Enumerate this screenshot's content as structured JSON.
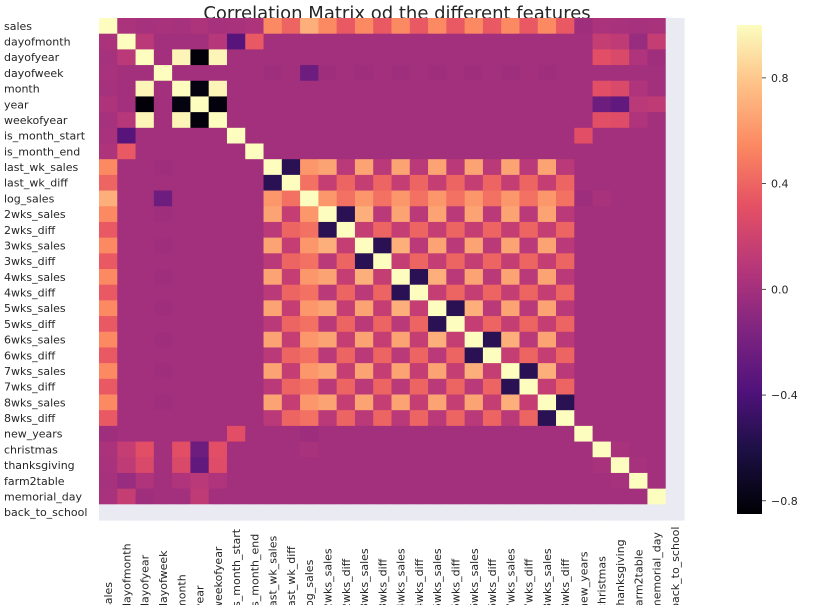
{
  "chart_data": {
    "type": "heatmap",
    "title": "Correlation Matrix od the different features",
    "labels": [
      "sales",
      "dayofmonth",
      "dayofyear",
      "dayofweek",
      "month",
      "year",
      "weekofyear",
      "is_month_start",
      "is_month_end",
      "last_wk_sales",
      "last_wk_diff",
      "log_sales",
      "2wks_sales",
      "2wks_diff",
      "3wks_sales",
      "3wks_diff",
      "4wks_sales",
      "4wks_diff",
      "5wks_sales",
      "5wks_diff",
      "6wks_sales",
      "6wks_diff",
      "7wks_sales",
      "7wks_diff",
      "8wks_sales",
      "8wks_diff",
      "new_years",
      "christmas",
      "thanksgiving",
      "farm2table",
      "memorial_day",
      "back_to_school"
    ],
    "colorbar": {
      "min": -0.85,
      "max": 1.0,
      "ticks": [
        -0.8,
        -0.4,
        0.0,
        0.4,
        0.8
      ],
      "tick_labels": [
        "−0.8",
        "−0.4",
        "0.0",
        "0.4",
        "0.8"
      ]
    },
    "colormap": "magma",
    "diagonal": 1.0,
    "missing_value_color": "#eaeaf2",
    "default_value": 0.0,
    "cells": [
      [
        0,
        1,
        0.03
      ],
      [
        0,
        2,
        0.01
      ],
      [
        0,
        3,
        0.02
      ],
      [
        0,
        4,
        0.01
      ],
      [
        0,
        5,
        0.04
      ],
      [
        0,
        6,
        0.01
      ],
      [
        0,
        7,
        0.02
      ],
      [
        0,
        8,
        0.04
      ],
      [
        0,
        9,
        0.55
      ],
      [
        0,
        10,
        0.4
      ],
      [
        0,
        11,
        0.7
      ],
      [
        0,
        12,
        0.55
      ],
      [
        0,
        13,
        0.35
      ],
      [
        0,
        14,
        0.55
      ],
      [
        0,
        15,
        0.35
      ],
      [
        0,
        16,
        0.55
      ],
      [
        0,
        17,
        0.35
      ],
      [
        0,
        18,
        0.55
      ],
      [
        0,
        19,
        0.35
      ],
      [
        0,
        20,
        0.55
      ],
      [
        0,
        21,
        0.35
      ],
      [
        0,
        22,
        0.55
      ],
      [
        0,
        23,
        0.35
      ],
      [
        0,
        24,
        0.55
      ],
      [
        0,
        25,
        0.35
      ],
      [
        0,
        26,
        -0.02
      ],
      [
        0,
        27,
        0.03
      ],
      [
        0,
        28,
        0.02
      ],
      [
        0,
        29,
        0.01
      ],
      [
        0,
        30,
        0.02
      ],
      [
        1,
        2,
        0.1
      ],
      [
        1,
        6,
        0.08
      ],
      [
        1,
        7,
        -0.35
      ],
      [
        1,
        8,
        0.35
      ],
      [
        1,
        27,
        0.15
      ],
      [
        1,
        28,
        0.12
      ],
      [
        1,
        29,
        -0.05
      ],
      [
        1,
        30,
        0.15
      ],
      [
        2,
        4,
        0.97
      ],
      [
        2,
        5,
        -0.83
      ],
      [
        2,
        6,
        0.97
      ],
      [
        2,
        27,
        0.3
      ],
      [
        2,
        28,
        0.25
      ],
      [
        2,
        29,
        0.05
      ],
      [
        2,
        30,
        -0.02
      ],
      [
        3,
        11,
        -0.25
      ],
      [
        3,
        9,
        -0.02
      ],
      [
        3,
        12,
        -0.02
      ],
      [
        3,
        14,
        -0.02
      ],
      [
        3,
        16,
        -0.02
      ],
      [
        3,
        18,
        -0.02
      ],
      [
        3,
        20,
        -0.02
      ],
      [
        3,
        22,
        -0.02
      ],
      [
        3,
        24,
        -0.02
      ],
      [
        4,
        5,
        -0.8
      ],
      [
        4,
        6,
        0.97
      ],
      [
        4,
        27,
        0.3
      ],
      [
        4,
        28,
        0.25
      ],
      [
        4,
        29,
        0.05
      ],
      [
        5,
        6,
        -0.82
      ],
      [
        5,
        27,
        -0.25
      ],
      [
        5,
        28,
        -0.3
      ],
      [
        5,
        29,
        0.1
      ],
      [
        5,
        30,
        0.12
      ],
      [
        6,
        27,
        0.3
      ],
      [
        6,
        28,
        0.28
      ],
      [
        6,
        29,
        0.05
      ],
      [
        7,
        26,
        0.3
      ],
      [
        9,
        10,
        -0.55
      ],
      [
        9,
        11,
        0.6
      ],
      [
        9,
        12,
        0.65
      ],
      [
        9,
        13,
        0.1
      ],
      [
        9,
        14,
        0.65
      ],
      [
        9,
        15,
        0.1
      ],
      [
        9,
        16,
        0.65
      ],
      [
        9,
        17,
        0.1
      ],
      [
        9,
        18,
        0.65
      ],
      [
        9,
        19,
        0.1
      ],
      [
        9,
        20,
        0.65
      ],
      [
        9,
        21,
        0.1
      ],
      [
        9,
        22,
        0.65
      ],
      [
        9,
        23,
        0.1
      ],
      [
        9,
        24,
        0.65
      ],
      [
        9,
        25,
        0.1
      ],
      [
        10,
        11,
        0.45
      ],
      [
        10,
        12,
        0.15
      ],
      [
        10,
        13,
        0.4
      ],
      [
        10,
        14,
        0.15
      ],
      [
        10,
        15,
        0.4
      ],
      [
        10,
        16,
        0.15
      ],
      [
        10,
        17,
        0.4
      ],
      [
        10,
        18,
        0.15
      ],
      [
        10,
        19,
        0.4
      ],
      [
        10,
        20,
        0.15
      ],
      [
        10,
        21,
        0.4
      ],
      [
        10,
        22,
        0.15
      ],
      [
        10,
        23,
        0.4
      ],
      [
        10,
        24,
        0.15
      ],
      [
        10,
        25,
        0.4
      ],
      [
        11,
        12,
        0.6
      ],
      [
        11,
        13,
        0.45
      ],
      [
        11,
        14,
        0.6
      ],
      [
        11,
        15,
        0.45
      ],
      [
        11,
        16,
        0.6
      ],
      [
        11,
        17,
        0.45
      ],
      [
        11,
        18,
        0.6
      ],
      [
        11,
        19,
        0.45
      ],
      [
        11,
        20,
        0.6
      ],
      [
        11,
        21,
        0.45
      ],
      [
        11,
        22,
        0.6
      ],
      [
        11,
        23,
        0.45
      ],
      [
        11,
        24,
        0.6
      ],
      [
        11,
        25,
        0.45
      ],
      [
        11,
        26,
        -0.03
      ],
      [
        11,
        27,
        0.02
      ],
      [
        12,
        13,
        -0.55
      ],
      [
        12,
        14,
        0.7
      ],
      [
        12,
        15,
        0.1
      ],
      [
        12,
        16,
        0.65
      ],
      [
        12,
        17,
        0.1
      ],
      [
        12,
        18,
        0.65
      ],
      [
        12,
        19,
        0.1
      ],
      [
        12,
        20,
        0.65
      ],
      [
        12,
        21,
        0.1
      ],
      [
        12,
        22,
        0.65
      ],
      [
        12,
        23,
        0.1
      ],
      [
        12,
        24,
        0.65
      ],
      [
        12,
        25,
        0.1
      ],
      [
        13,
        14,
        0.15
      ],
      [
        13,
        15,
        0.4
      ],
      [
        13,
        16,
        0.15
      ],
      [
        13,
        17,
        0.4
      ],
      [
        13,
        18,
        0.15
      ],
      [
        13,
        19,
        0.4
      ],
      [
        13,
        20,
        0.15
      ],
      [
        13,
        21,
        0.4
      ],
      [
        13,
        22,
        0.15
      ],
      [
        13,
        23,
        0.4
      ],
      [
        13,
        24,
        0.15
      ],
      [
        13,
        25,
        0.4
      ],
      [
        14,
        15,
        -0.55
      ],
      [
        14,
        16,
        0.7
      ],
      [
        14,
        17,
        0.1
      ],
      [
        14,
        18,
        0.65
      ],
      [
        14,
        19,
        0.1
      ],
      [
        14,
        20,
        0.65
      ],
      [
        14,
        21,
        0.1
      ],
      [
        14,
        22,
        0.65
      ],
      [
        14,
        23,
        0.1
      ],
      [
        14,
        24,
        0.65
      ],
      [
        14,
        25,
        0.1
      ],
      [
        15,
        16,
        0.15
      ],
      [
        15,
        17,
        0.4
      ],
      [
        15,
        18,
        0.15
      ],
      [
        15,
        19,
        0.4
      ],
      [
        15,
        20,
        0.15
      ],
      [
        15,
        21,
        0.4
      ],
      [
        15,
        22,
        0.15
      ],
      [
        15,
        23,
        0.4
      ],
      [
        15,
        24,
        0.15
      ],
      [
        15,
        25,
        0.4
      ],
      [
        16,
        17,
        -0.55
      ],
      [
        16,
        18,
        0.7
      ],
      [
        16,
        19,
        0.1
      ],
      [
        16,
        20,
        0.65
      ],
      [
        16,
        21,
        0.1
      ],
      [
        16,
        22,
        0.65
      ],
      [
        16,
        23,
        0.1
      ],
      [
        16,
        24,
        0.65
      ],
      [
        16,
        25,
        0.1
      ],
      [
        17,
        18,
        0.15
      ],
      [
        17,
        19,
        0.4
      ],
      [
        17,
        20,
        0.15
      ],
      [
        17,
        21,
        0.4
      ],
      [
        17,
        22,
        0.15
      ],
      [
        17,
        23,
        0.4
      ],
      [
        17,
        24,
        0.15
      ],
      [
        17,
        25,
        0.4
      ],
      [
        18,
        19,
        -0.55
      ],
      [
        18,
        20,
        0.7
      ],
      [
        18,
        21,
        0.1
      ],
      [
        18,
        22,
        0.65
      ],
      [
        18,
        23,
        0.1
      ],
      [
        18,
        24,
        0.65
      ],
      [
        18,
        25,
        0.1
      ],
      [
        19,
        20,
        0.15
      ],
      [
        19,
        21,
        0.4
      ],
      [
        19,
        22,
        0.15
      ],
      [
        19,
        23,
        0.4
      ],
      [
        19,
        24,
        0.15
      ],
      [
        19,
        25,
        0.4
      ],
      [
        20,
        21,
        -0.55
      ],
      [
        20,
        22,
        0.7
      ],
      [
        20,
        23,
        0.1
      ],
      [
        20,
        24,
        0.65
      ],
      [
        20,
        25,
        0.1
      ],
      [
        21,
        22,
        0.15
      ],
      [
        21,
        23,
        0.4
      ],
      [
        21,
        24,
        0.15
      ],
      [
        21,
        25,
        0.4
      ],
      [
        22,
        23,
        -0.55
      ],
      [
        22,
        24,
        0.7
      ],
      [
        22,
        25,
        0.1
      ],
      [
        23,
        24,
        0.15
      ],
      [
        23,
        25,
        0.4
      ],
      [
        24,
        25,
        -0.55
      ],
      [
        27,
        28,
        0.02
      ],
      [
        28,
        29,
        0.01
      ]
    ]
  }
}
